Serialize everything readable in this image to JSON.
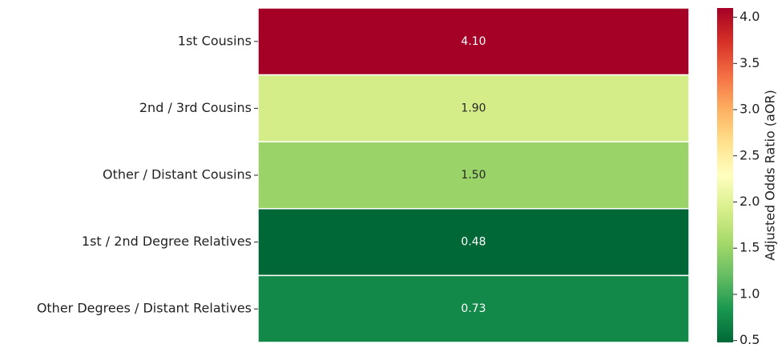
{
  "chart_data": {
    "type": "heatmap",
    "categories": [
      "1st Cousins",
      "2nd / 3rd Cousins",
      "Other / Distant Cousins",
      "1st / 2nd Degree Relatives",
      "Other Degrees / Distant Relatives"
    ],
    "values": [
      4.1,
      1.9,
      1.5,
      0.48,
      0.73
    ],
    "value_labels": [
      "4.10",
      "1.90",
      "1.50",
      "0.48",
      "0.73"
    ],
    "colormap": [
      "#006837",
      "#1a9850",
      "#66bd63",
      "#a6d96a",
      "#d9ef8b",
      "#ffffbf",
      "#fee08b",
      "#fdae61",
      "#f46d43",
      "#d73027",
      "#a50026"
    ],
    "ylim": [
      0.48,
      4.1
    ],
    "yticks": [
      0.5,
      {
        "value": 1,
        "label": "1.0"
      },
      1.5,
      {
        "value": 2,
        "label": "2.0"
      },
      2.5,
      {
        "value": 3,
        "label": "3.0"
      },
      3.5,
      {
        "value": 4,
        "label": "4.0"
      }
    ],
    "ylabel": "Adjusted Odds Ratio (aOR)"
  }
}
